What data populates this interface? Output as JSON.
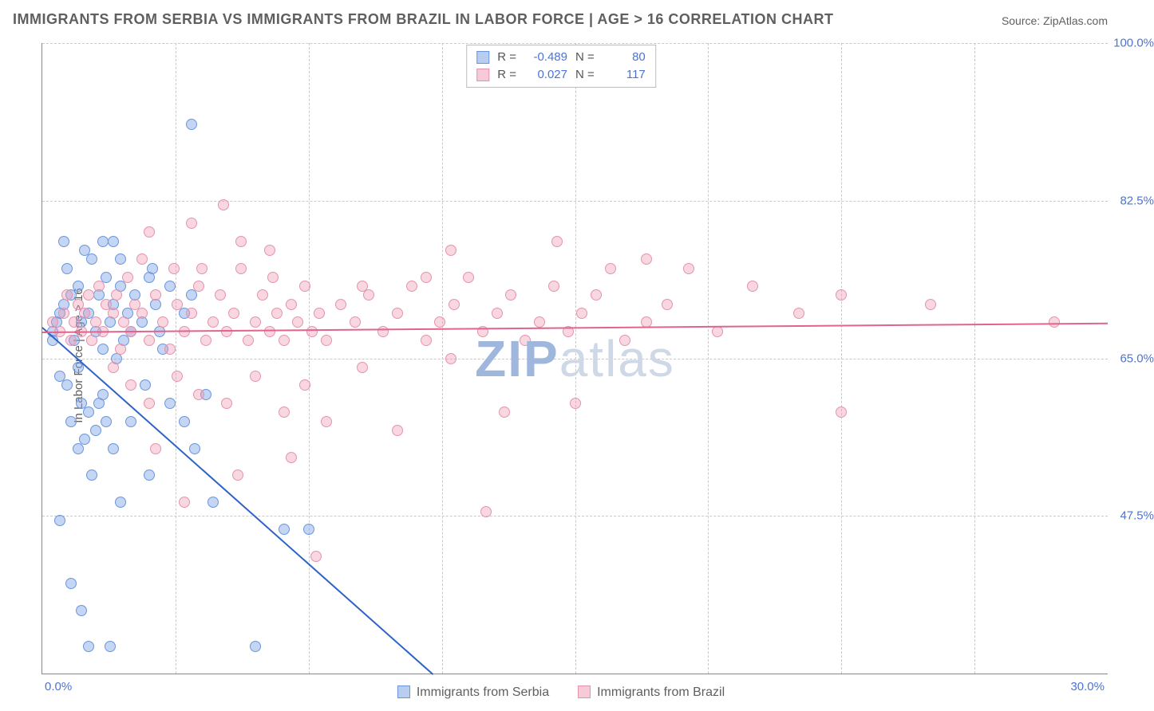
{
  "title": "IMMIGRANTS FROM SERBIA VS IMMIGRANTS FROM BRAZIL IN LABOR FORCE | AGE > 16 CORRELATION CHART",
  "source": "Source: ZipAtlas.com",
  "ylabel": "In Labor Force | Age > 16",
  "watermark": {
    "z": "ZIP",
    "rest": "atlas"
  },
  "chart": {
    "type": "scatter",
    "xlim": [
      0,
      30
    ],
    "ylim": [
      30,
      100
    ],
    "xticks": {
      "start": "0.0%",
      "end": "30.0%",
      "minor": [
        3.75,
        7.5,
        11.25,
        15,
        18.75,
        22.5,
        26.25
      ]
    },
    "yticks": [
      {
        "v": 47.5,
        "label": "47.5%"
      },
      {
        "v": 65,
        "label": "65.0%"
      },
      {
        "v": 82.5,
        "label": "82.5%"
      },
      {
        "v": 100,
        "label": "100.0%"
      }
    ],
    "grid_color": "#c9c9c9",
    "marker_size": 14,
    "series": [
      {
        "id": "serbia",
        "name": "Immigrants from Serbia",
        "color_fill": "rgba(125,165,230,.45)",
        "color_stroke": "#6b96dd",
        "trend_color": "#2e63c8",
        "R": "-0.489",
        "N": "80",
        "trend": {
          "x1": 0,
          "y1": 68.5,
          "x2": 11,
          "y2": 30
        },
        "points": [
          [
            0.3,
            68
          ],
          [
            0.3,
            67
          ],
          [
            0.5,
            70
          ],
          [
            0.4,
            69
          ],
          [
            0.6,
            71
          ],
          [
            0.7,
            75
          ],
          [
            0.8,
            72
          ],
          [
            0.9,
            67
          ],
          [
            1.0,
            73
          ],
          [
            1.1,
            69
          ],
          [
            1.2,
            77
          ],
          [
            1.3,
            70
          ],
          [
            1.4,
            76
          ],
          [
            1.5,
            68
          ],
          [
            1.6,
            72
          ],
          [
            1.7,
            66
          ],
          [
            1.8,
            74
          ],
          [
            1.9,
            69
          ],
          [
            2.0,
            71
          ],
          [
            2.1,
            65
          ],
          [
            2.2,
            73
          ],
          [
            2.3,
            67
          ],
          [
            2.4,
            70
          ],
          [
            2.5,
            68
          ],
          [
            2.6,
            72
          ],
          [
            2.8,
            69
          ],
          [
            3.0,
            74
          ],
          [
            3.2,
            71
          ],
          [
            3.4,
            66
          ],
          [
            3.6,
            73
          ],
          [
            4.0,
            70
          ],
          [
            4.2,
            72
          ],
          [
            4.2,
            91
          ],
          [
            0.5,
            63
          ],
          [
            0.7,
            62
          ],
          [
            0.8,
            58
          ],
          [
            1.0,
            55
          ],
          [
            1.0,
            64
          ],
          [
            1.1,
            60
          ],
          [
            1.2,
            56
          ],
          [
            1.3,
            59
          ],
          [
            1.4,
            52
          ],
          [
            1.5,
            57
          ],
          [
            1.6,
            60
          ],
          [
            1.7,
            61
          ],
          [
            1.8,
            58
          ],
          [
            2.0,
            55
          ],
          [
            2.2,
            49
          ],
          [
            0.5,
            47
          ],
          [
            0.8,
            40
          ],
          [
            1.1,
            37
          ],
          [
            1.3,
            33
          ],
          [
            1.9,
            33
          ],
          [
            3.0,
            52
          ],
          [
            2.9,
            62
          ],
          [
            2.5,
            58
          ],
          [
            3.6,
            60
          ],
          [
            4.0,
            58
          ],
          [
            4.3,
            55
          ],
          [
            4.6,
            61
          ],
          [
            4.8,
            49
          ],
          [
            6.0,
            33
          ],
          [
            6.8,
            46
          ],
          [
            7.5,
            46
          ],
          [
            0.6,
            78
          ],
          [
            1.7,
            78
          ],
          [
            2.2,
            76
          ],
          [
            3.1,
            75
          ],
          [
            3.3,
            68
          ],
          [
            2.0,
            78
          ]
        ]
      },
      {
        "id": "brazil",
        "name": "Immigrants from Brazil",
        "color_fill": "rgba(240,150,175,.38)",
        "color_stroke": "#e593ad",
        "trend_color": "#e0648d",
        "R": "0.027",
        "N": "117",
        "trend": {
          "x1": 0,
          "y1": 68,
          "x2": 30,
          "y2": 69
        },
        "points": [
          [
            0.3,
            69
          ],
          [
            0.5,
            68
          ],
          [
            0.6,
            70
          ],
          [
            0.7,
            72
          ],
          [
            0.8,
            67
          ],
          [
            0.9,
            69
          ],
          [
            1.0,
            71
          ],
          [
            1.1,
            68
          ],
          [
            1.2,
            70
          ],
          [
            1.3,
            72
          ],
          [
            1.4,
            67
          ],
          [
            1.5,
            69
          ],
          [
            1.6,
            73
          ],
          [
            1.7,
            68
          ],
          [
            1.8,
            71
          ],
          [
            2.0,
            70
          ],
          [
            2.1,
            72
          ],
          [
            2.2,
            66
          ],
          [
            2.3,
            69
          ],
          [
            2.4,
            74
          ],
          [
            2.5,
            68
          ],
          [
            2.6,
            71
          ],
          [
            2.8,
            70
          ],
          [
            3.0,
            67
          ],
          [
            3.2,
            72
          ],
          [
            3.4,
            69
          ],
          [
            3.6,
            66
          ],
          [
            3.8,
            71
          ],
          [
            4.0,
            68
          ],
          [
            4.2,
            70
          ],
          [
            4.4,
            73
          ],
          [
            4.6,
            67
          ],
          [
            4.8,
            69
          ],
          [
            5.0,
            72
          ],
          [
            5.2,
            68
          ],
          [
            5.4,
            70
          ],
          [
            5.6,
            75
          ],
          [
            5.8,
            67
          ],
          [
            6.0,
            69
          ],
          [
            6.2,
            72
          ],
          [
            6.4,
            68
          ],
          [
            6.6,
            70
          ],
          [
            6.8,
            67
          ],
          [
            7.0,
            71
          ],
          [
            7.2,
            69
          ],
          [
            7.4,
            73
          ],
          [
            7.6,
            68
          ],
          [
            7.8,
            70
          ],
          [
            8.0,
            67
          ],
          [
            8.4,
            71
          ],
          [
            8.8,
            69
          ],
          [
            9.2,
            72
          ],
          [
            9.6,
            68
          ],
          [
            10.0,
            70
          ],
          [
            10.4,
            73
          ],
          [
            10.8,
            67
          ],
          [
            11.2,
            69
          ],
          [
            11.6,
            71
          ],
          [
            12.0,
            74
          ],
          [
            12.4,
            68
          ],
          [
            12.8,
            70
          ],
          [
            13.2,
            72
          ],
          [
            13.6,
            67
          ],
          [
            14.0,
            69
          ],
          [
            14.4,
            73
          ],
          [
            14.8,
            68
          ],
          [
            15.2,
            70
          ],
          [
            15.6,
            72
          ],
          [
            16.0,
            75
          ],
          [
            16.4,
            67
          ],
          [
            17.0,
            69
          ],
          [
            17.6,
            71
          ],
          [
            18.2,
            75
          ],
          [
            19.0,
            68
          ],
          [
            20.0,
            73
          ],
          [
            21.3,
            70
          ],
          [
            22.5,
            72
          ],
          [
            25.0,
            71
          ],
          [
            28.5,
            69
          ],
          [
            4.2,
            80
          ],
          [
            3.0,
            79
          ],
          [
            5.6,
            78
          ],
          [
            6.4,
            77
          ],
          [
            2.8,
            76
          ],
          [
            3.8,
            63
          ],
          [
            4.4,
            61
          ],
          [
            5.2,
            60
          ],
          [
            6.0,
            63
          ],
          [
            6.8,
            59
          ],
          [
            7.4,
            62
          ],
          [
            8.0,
            58
          ],
          [
            9.0,
            64
          ],
          [
            10.0,
            57
          ],
          [
            11.5,
            65
          ],
          [
            13.0,
            59
          ],
          [
            15.0,
            60
          ],
          [
            17.0,
            76
          ],
          [
            3.2,
            55
          ],
          [
            4.0,
            49
          ],
          [
            5.5,
            52
          ],
          [
            7.0,
            54
          ],
          [
            12.5,
            48
          ],
          [
            22.5,
            59
          ],
          [
            7.7,
            43
          ],
          [
            5.1,
            82
          ],
          [
            9.0,
            73
          ],
          [
            10.8,
            74
          ],
          [
            11.5,
            77
          ],
          [
            14.5,
            78
          ],
          [
            2.0,
            64
          ],
          [
            2.5,
            62
          ],
          [
            3.0,
            60
          ],
          [
            3.7,
            75
          ],
          [
            4.5,
            75
          ],
          [
            6.5,
            74
          ]
        ]
      }
    ]
  },
  "legend_bottom": [
    {
      "id": "serbia",
      "label": "Immigrants from Serbia"
    },
    {
      "id": "brazil",
      "label": "Immigrants from Brazil"
    }
  ]
}
